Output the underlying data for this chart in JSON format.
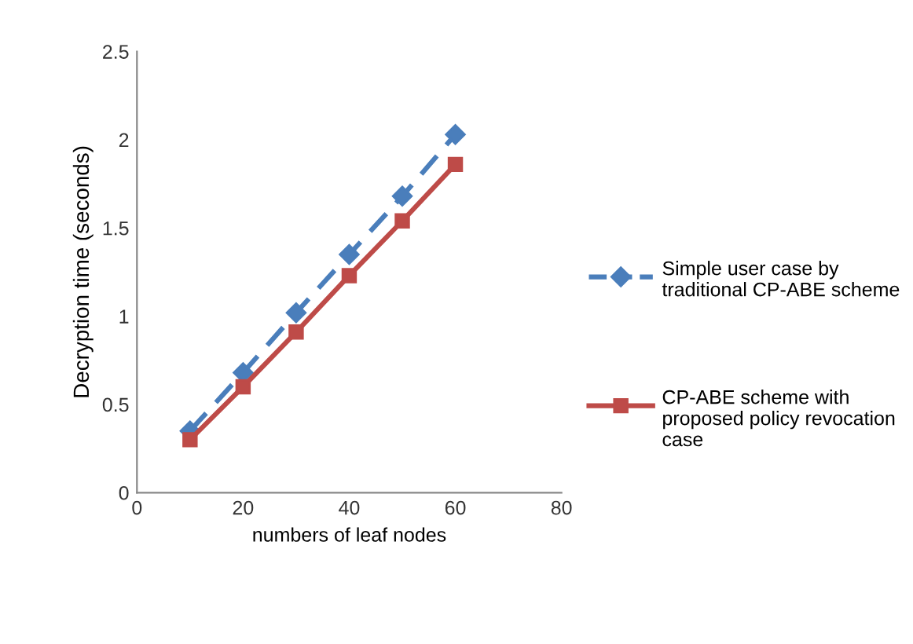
{
  "chart_data": {
    "type": "line",
    "xlabel": "numbers of leaf nodes",
    "ylabel": "Decryption time (seconds)",
    "x": [
      10,
      20,
      30,
      40,
      50,
      60
    ],
    "series": [
      {
        "name": "Simple user case by traditional CP-ABE scheme",
        "color": "#4a7ebb",
        "values": [
          0.35,
          0.68,
          1.02,
          1.35,
          1.68,
          2.03
        ],
        "marker": "diamond",
        "line_style": "dashed"
      },
      {
        "name": "CP-ABE scheme with proposed policy revocation case",
        "color": "#be4b48",
        "values": [
          0.3,
          0.6,
          0.91,
          1.23,
          1.54,
          1.86
        ],
        "marker": "square",
        "line_style": "solid"
      }
    ],
    "xlim": [
      0,
      80
    ],
    "xticks": [
      0,
      20,
      40,
      60,
      80
    ],
    "ylim": [
      0,
      2.5
    ],
    "yticks": [
      0,
      0.5,
      1,
      1.5,
      2,
      2.5
    ],
    "grid": false,
    "legend": "right"
  }
}
